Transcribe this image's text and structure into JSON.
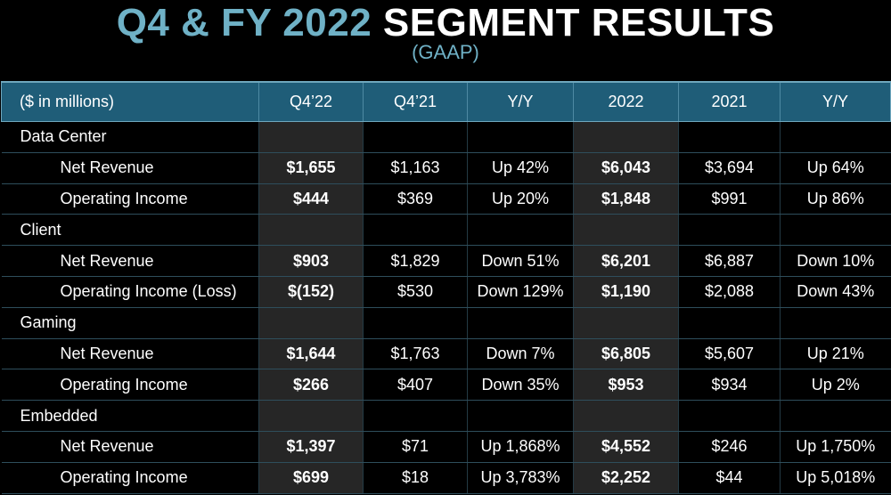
{
  "slide": {
    "title_accent": "Q4 & FY 2022",
    "title_main": "SEGMENT RESULTS",
    "subtitle": "(GAAP)"
  },
  "colors": {
    "accent": "#6fb1c6",
    "header_bg": "#1f5d78",
    "highlight_col_bg": "#262626",
    "background": "#000000"
  },
  "table": {
    "headers": [
      "($ in millions)",
      "Q4’22",
      "Q4’21",
      "Y/Y",
      "2022",
      "2021",
      "Y/Y"
    ],
    "highlight_columns": [
      1,
      4
    ],
    "rows": [
      {
        "type": "segment",
        "cells": [
          "Data Center",
          "",
          "",
          "",
          "",
          "",
          ""
        ]
      },
      {
        "type": "metric",
        "cells": [
          "Net Revenue",
          "$1,655",
          "$1,163",
          "Up 42%",
          "$6,043",
          "$3,694",
          "Up 64%"
        ]
      },
      {
        "type": "metric",
        "cells": [
          "Operating Income",
          "$444",
          "$369",
          "Up 20%",
          "$1,848",
          "$991",
          "Up 86%"
        ]
      },
      {
        "type": "segment",
        "cells": [
          "Client",
          "",
          "",
          "",
          "",
          "",
          ""
        ]
      },
      {
        "type": "metric",
        "cells": [
          "Net Revenue",
          "$903",
          "$1,829",
          "Down 51%",
          "$6,201",
          "$6,887",
          "Down 10%"
        ]
      },
      {
        "type": "metric",
        "cells": [
          "Operating Income (Loss)",
          "$(152)",
          "$530",
          "Down 129%",
          "$1,190",
          "$2,088",
          "Down 43%"
        ]
      },
      {
        "type": "segment",
        "cells": [
          "Gaming",
          "",
          "",
          "",
          "",
          "",
          ""
        ]
      },
      {
        "type": "metric",
        "cells": [
          "Net Revenue",
          "$1,644",
          "$1,763",
          "Down 7%",
          "$6,805",
          "$5,607",
          "Up 21%"
        ]
      },
      {
        "type": "metric",
        "cells": [
          "Operating Income",
          "$266",
          "$407",
          "Down 35%",
          "$953",
          "$934",
          "Up 2%"
        ]
      },
      {
        "type": "segment",
        "cells": [
          "Embedded",
          "",
          "",
          "",
          "",
          "",
          ""
        ]
      },
      {
        "type": "metric",
        "cells": [
          "Net Revenue",
          "$1,397",
          "$71",
          "Up 1,868%",
          "$4,552",
          "$246",
          "Up 1,750%"
        ]
      },
      {
        "type": "metric",
        "cells": [
          "Operating Income",
          "$699",
          "$18",
          "Up 3,783%",
          "$2,252",
          "$44",
          "Up 5,018%"
        ]
      }
    ]
  }
}
